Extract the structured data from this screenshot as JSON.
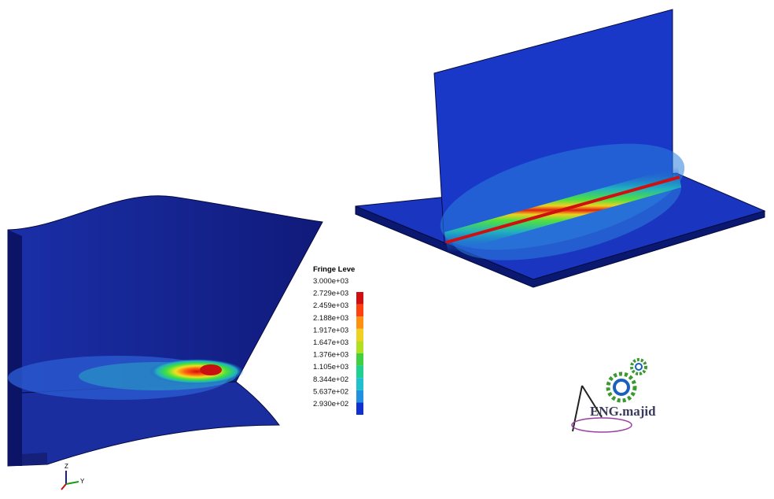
{
  "legend": {
    "title": "Fringe Leve",
    "labels": [
      "3.000e+03",
      "2.729e+03",
      "2.459e+03",
      "2.188e+03",
      "1.917e+03",
      "1.647e+03",
      "1.376e+03",
      "1.105e+03",
      "8.344e+02",
      "5.637e+02",
      "2.930e+02"
    ]
  },
  "logo": {
    "text": "ENG.majid"
  },
  "triad": {
    "z": "Z",
    "y": "Y"
  }
}
